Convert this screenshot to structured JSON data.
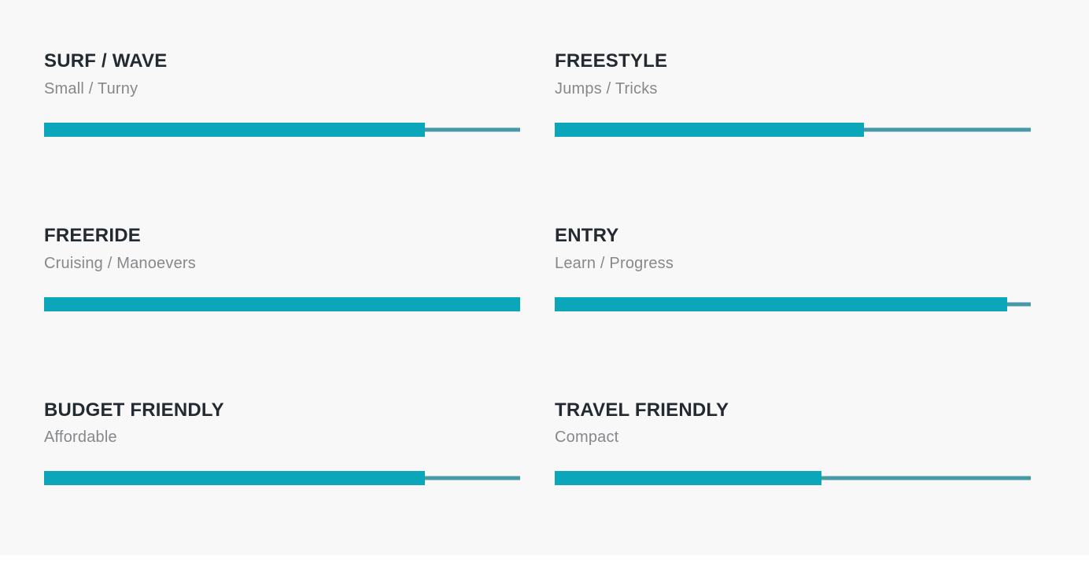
{
  "colors": {
    "bar_fill": "#0ca6bb",
    "bar_track": "#4899a7",
    "title_text": "#242a31",
    "subtitle_text": "#85888c",
    "panel_background": "#f8f8f8",
    "page_background": "#ffffff"
  },
  "ratings": [
    {
      "title": "SURF / WAVE",
      "subtitle": "Small / Turny",
      "percent": 80
    },
    {
      "title": "FREESTYLE",
      "subtitle": "Jumps / Tricks",
      "percent": 65
    },
    {
      "title": "FREERIDE",
      "subtitle": "Cruising / Manoevers",
      "percent": 100
    },
    {
      "title": "ENTRY",
      "subtitle": "Learn / Progress",
      "percent": 95
    },
    {
      "title": "BUDGET FRIENDLY",
      "subtitle": "Affordable",
      "percent": 80
    },
    {
      "title": "TRAVEL FRIENDLY",
      "subtitle": "Compact",
      "percent": 56
    }
  ],
  "chart_data": {
    "type": "bar",
    "orientation": "horizontal",
    "categories": [
      "SURF / WAVE",
      "FREESTYLE",
      "FREERIDE",
      "ENTRY",
      "BUDGET FRIENDLY",
      "TRAVEL FRIENDLY"
    ],
    "category_subtitles": [
      "Small / Turny",
      "Jumps / Tricks",
      "Cruising / Manoevers",
      "Learn / Progress",
      "Affordable",
      "Compact"
    ],
    "values": [
      80,
      65,
      100,
      95,
      80,
      56
    ],
    "value_unit": "percent",
    "xlim": [
      0,
      100
    ],
    "title": "",
    "xlabel": "",
    "ylabel": "",
    "grid": false,
    "legend": false,
    "layout": "2-column grid of labeled progress bars"
  }
}
